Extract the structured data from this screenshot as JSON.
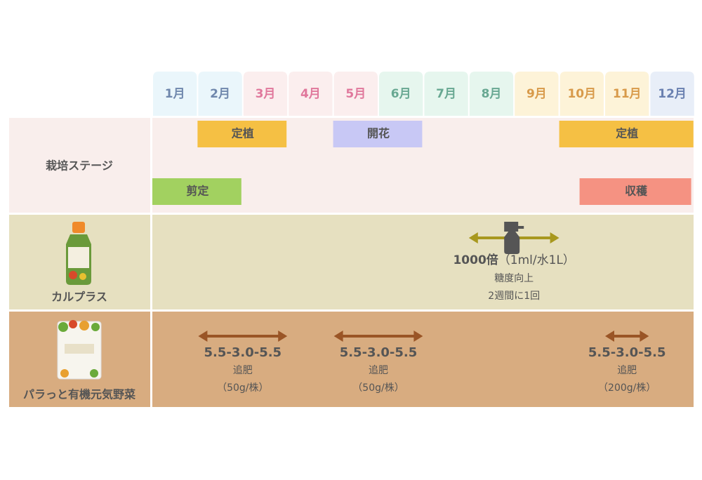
{
  "months": [
    {
      "label": "1月",
      "bg": "#eaf6fb",
      "color": "#7088ad"
    },
    {
      "label": "2月",
      "bg": "#eaf6fb",
      "color": "#7088ad"
    },
    {
      "label": "3月",
      "bg": "#fbeeee",
      "color": "#e0789c"
    },
    {
      "label": "4月",
      "bg": "#fbeeee",
      "color": "#e0789c"
    },
    {
      "label": "5月",
      "bg": "#fbeeee",
      "color": "#e0789c"
    },
    {
      "label": "6月",
      "bg": "#e6f6ee",
      "color": "#68a892"
    },
    {
      "label": "7月",
      "bg": "#e6f6ee",
      "color": "#68a892"
    },
    {
      "label": "8月",
      "bg": "#e6f6ee",
      "color": "#68a892"
    },
    {
      "label": "9月",
      "bg": "#fdf3d8",
      "color": "#d89a4a"
    },
    {
      "label": "10月",
      "bg": "#fdf3d8",
      "color": "#d89a4a"
    },
    {
      "label": "11月",
      "bg": "#fdf3d8",
      "color": "#d89a4a"
    },
    {
      "label": "12月",
      "bg": "#e8eef8",
      "color": "#6a80b0"
    }
  ],
  "stage_row": {
    "label": "栽培ステージ",
    "bg": "#f9eeec",
    "upper_bars": [
      {
        "label": "定植",
        "from": 2,
        "to": 3,
        "color": "#f5c044"
      },
      {
        "label": "開花",
        "from": 5,
        "to": 6,
        "color": "#c8c8f5"
      },
      {
        "label": "定植",
        "from": 10,
        "to": 12,
        "color": "#f5c044"
      }
    ],
    "lower_bars": [
      {
        "label": "剪定",
        "from": 1,
        "to": 2,
        "color": "#a2d160"
      },
      {
        "label": "収穫",
        "from": 10.45,
        "to": 11.95,
        "color": "#f59282"
      }
    ]
  },
  "calplus_row": {
    "label": "カルプラス",
    "bg": "#e6e0c0",
    "arrow_color": "#a8981e",
    "treatments": [
      {
        "from": 8,
        "to": 9,
        "dose": "1000倍",
        "dose_note": "（1ml/水1L）",
        "effect": "糖度向上",
        "frequency": "2週間に1回"
      }
    ]
  },
  "organic_row": {
    "label": "パラっと有機元気野菜",
    "bg": "#d8ac80",
    "arrow_color": "#9a5526",
    "applications": [
      {
        "from": 2,
        "to": 3,
        "npk": "5.5-3.0-5.5",
        "method": "追肥",
        "amount": "（50g/株）"
      },
      {
        "from": 5,
        "to": 6,
        "npk": "5.5-3.0-5.5",
        "method": "追肥",
        "amount": "（50g/株）"
      },
      {
        "from": 11,
        "to": 11,
        "npk": "5.5-3.0-5.5",
        "method": "追肥",
        "amount": "（200g/株）"
      }
    ]
  }
}
